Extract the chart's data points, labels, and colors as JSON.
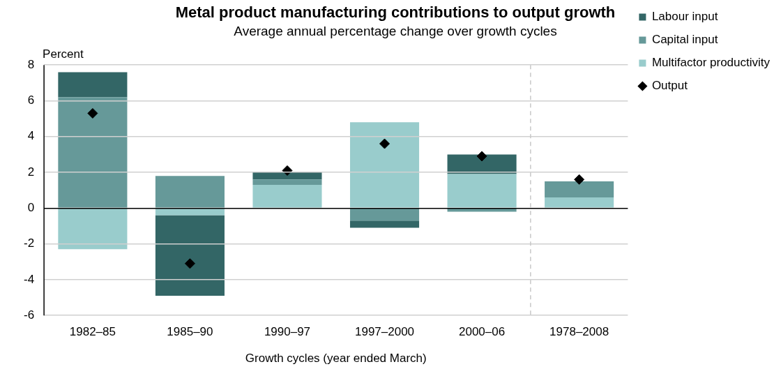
{
  "chart_data": {
    "type": "bar",
    "stacked": true,
    "title": "Metal product manufacturing contributions to output growth",
    "subtitle": "Average annual percentage change over growth cycles",
    "ylabel": "Percent",
    "xlabel": "Growth cycles (year ended March)",
    "categories": [
      "1982–85",
      "1985–90",
      "1990–97",
      "1997–2000",
      "2000–06",
      "1978–2008"
    ],
    "series": [
      {
        "name": "Multifactor productivity",
        "color": "#99cccc",
        "values": [
          -2.3,
          -0.4,
          1.3,
          4.8,
          1.9,
          0.6
        ]
      },
      {
        "name": "Capital input",
        "color": "#669999",
        "values": [
          6.2,
          1.8,
          0.3,
          -0.7,
          -0.2,
          0.9
        ]
      },
      {
        "name": "Labour input",
        "color": "#336666",
        "values": [
          1.4,
          -4.5,
          0.4,
          -0.4,
          1.1,
          0
        ]
      },
      {
        "name": "Output",
        "type": "scatter",
        "color": "#000000",
        "marker": "diamond",
        "x": [
          "1982–85",
          "1985–90",
          "1990–97",
          "1997–2000",
          "2000–06",
          "1978–2008"
        ],
        "values": [
          5.3,
          -3.1,
          2.1,
          3.6,
          2.9,
          1.6
        ]
      }
    ],
    "ylim": [
      -6,
      8
    ],
    "yticks": [
      -6,
      -4,
      -2,
      0,
      2,
      4,
      6,
      8
    ],
    "grid": "y",
    "legend": "right",
    "ref_lines": [
      {
        "axis": "x",
        "value": "1978–2008",
        "line_style": "dashed",
        "color": "#c8c8c8"
      }
    ]
  }
}
